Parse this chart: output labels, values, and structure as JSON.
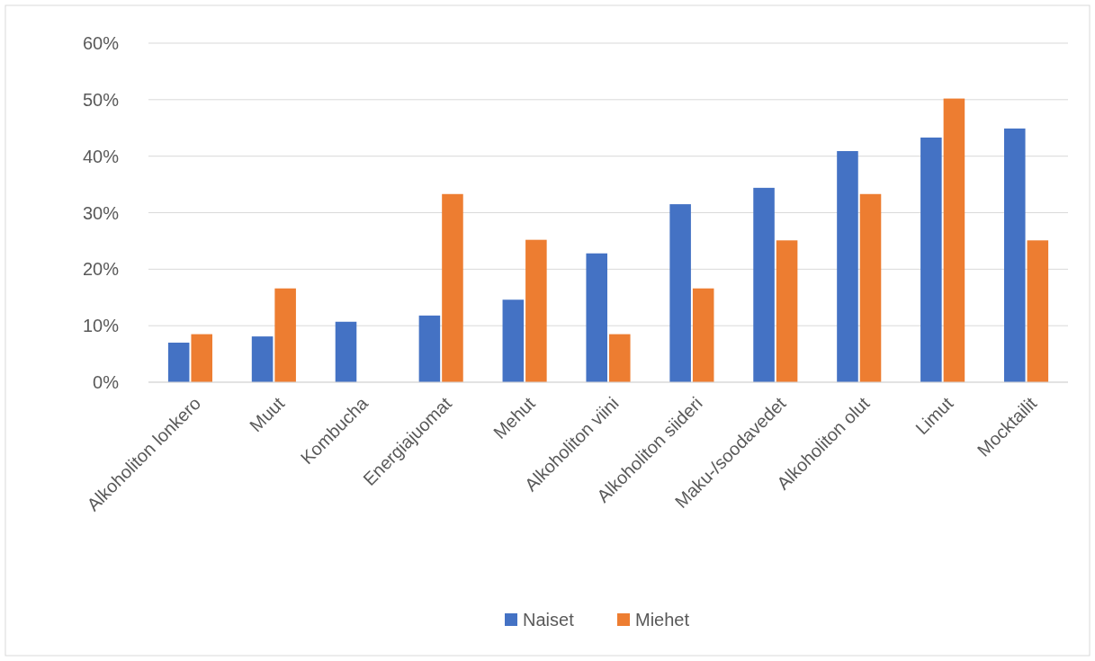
{
  "chart_data": {
    "type": "bar",
    "categories": [
      "Alkoholiton lonkero",
      "Muut",
      "Kombucha",
      "Energiajuomat",
      "Mehut",
      "Alkoholiton viini",
      "Alkoholiton siideri",
      "Maku-/soodavedet",
      "Alkoholiton olut",
      "Limut",
      "Mocktailit"
    ],
    "series": [
      {
        "name": "Naiset",
        "color": "#4472c4",
        "values": [
          7.0,
          8.1,
          10.7,
          11.8,
          14.6,
          22.8,
          31.5,
          34.4,
          40.9,
          43.3,
          44.9
        ]
      },
      {
        "name": "Miehet",
        "color": "#ed7d31",
        "values": [
          8.5,
          16.6,
          0,
          33.3,
          25.2,
          8.5,
          16.6,
          25.1,
          33.3,
          50.2,
          25.1
        ]
      }
    ],
    "ylim": [
      0,
      60
    ],
    "yticks": [
      {
        "value": 0,
        "label": "0%"
      },
      {
        "value": 10,
        "label": "10%"
      },
      {
        "value": 20,
        "label": "20%"
      },
      {
        "value": 30,
        "label": "30%"
      },
      {
        "value": 40,
        "label": "40%"
      },
      {
        "value": 50,
        "label": "50%"
      },
      {
        "value": 60,
        "label": "60%"
      }
    ],
    "grid": "y",
    "legend": "bottom"
  }
}
